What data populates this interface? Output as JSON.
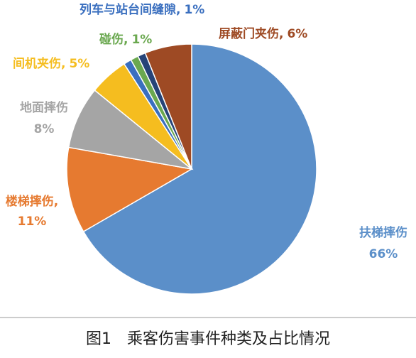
{
  "chart_data": {
    "type": "pie",
    "categories": [
      "扶梯摔伤",
      "楼梯摔伤,",
      "地面摔伤",
      "间机夹伤,",
      "列车与站台间缝隙,",
      "碰伤,",
      null,
      "屏蔽门夹伤,"
    ],
    "values": [
      66,
      11,
      8,
      5,
      1,
      1,
      1,
      6
    ],
    "value_labels": [
      "66%",
      "11%",
      "8%",
      "5%",
      "1%",
      "1%",
      null,
      "6%"
    ],
    "colors": [
      "#5b8fc9",
      "#e67a30",
      "#a5a5a5",
      "#f5bd1f",
      "#3a6fbf",
      "#6aa84f",
      "#264478",
      "#9e4a24"
    ],
    "caption": "图1　乘客伤害事件种类及占比情况"
  }
}
